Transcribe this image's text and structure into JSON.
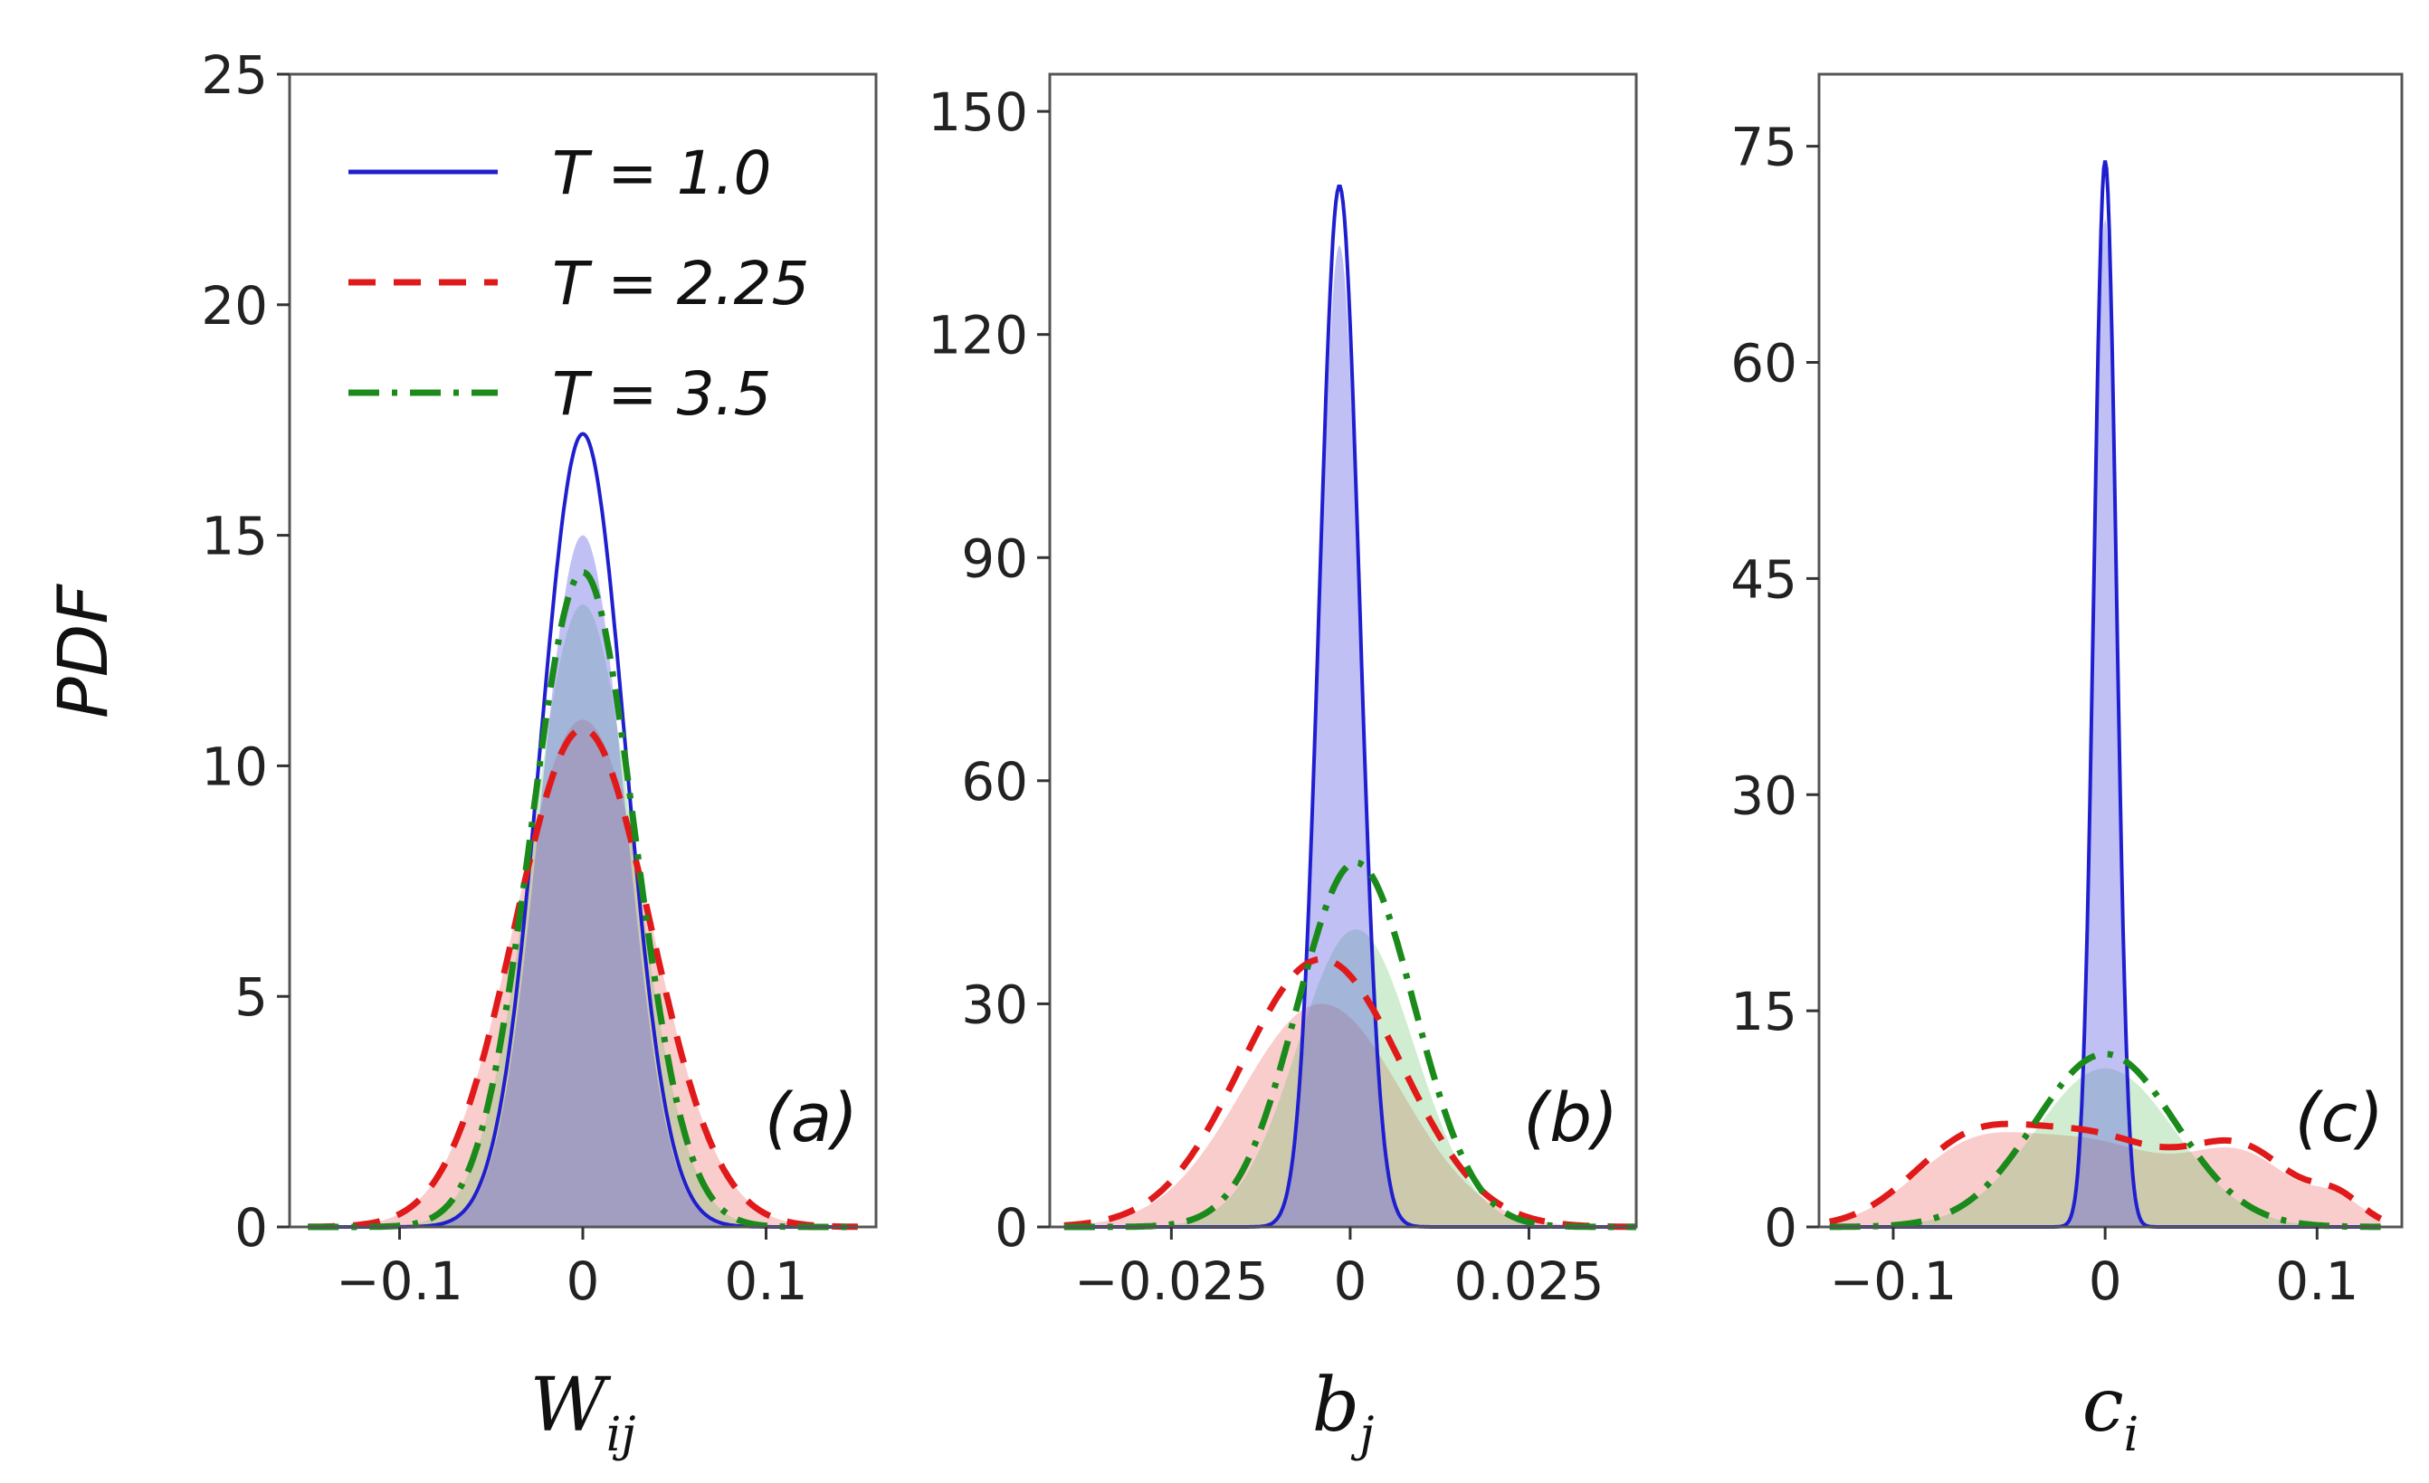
{
  "figure": {
    "ylabel": "PDF",
    "legend": {
      "entries": [
        {
          "label": "T = 1.0",
          "color": "#1f1fd0",
          "style": "solid"
        },
        {
          "label": "T = 2.25",
          "color": "#e01a1a",
          "style": "dashed"
        },
        {
          "label": "T = 3.5",
          "color": "#1a8a1a",
          "style": "dashdot"
        }
      ]
    }
  },
  "chart_data": [
    {
      "type": "area",
      "panel_label": "(a)",
      "xlabel": "W",
      "xlabel_sub": "ij",
      "xlim": [
        -0.16,
        0.16
      ],
      "ylim": [
        0,
        25
      ],
      "xticks": [
        -0.1,
        0,
        0.1
      ],
      "xtick_labels": [
        "−0.1",
        "0",
        "0.1"
      ],
      "yticks": [
        0,
        5,
        10,
        15,
        20,
        25
      ],
      "ytick_labels": [
        "0",
        "5",
        "10",
        "15",
        "20",
        "25"
      ],
      "xrange": [
        -0.15,
        0.15
      ],
      "series": [
        {
          "name": "T = 1.0",
          "peak": 17.2,
          "center": 0.0,
          "sigma": 0.0232,
          "fill_peak": 15.0
        },
        {
          "name": "T = 2.25",
          "peak": 10.8,
          "center": 0.0,
          "sigma": 0.037,
          "fill_peak": 11.0
        },
        {
          "name": "T = 3.5",
          "peak": 14.2,
          "center": 0.0,
          "sigma": 0.0282,
          "fill_peak": 13.5
        }
      ]
    },
    {
      "type": "area",
      "panel_label": "(b)",
      "xlabel": "b",
      "xlabel_sub": "j",
      "xlim": [
        -0.042,
        0.04
      ],
      "ylim": [
        0,
        155
      ],
      "xticks": [
        -0.025,
        0,
        0.025
      ],
      "xtick_labels": [
        "−0.025",
        "0",
        "0.025"
      ],
      "yticks": [
        0,
        30,
        60,
        90,
        120,
        150
      ],
      "ytick_labels": [
        "0",
        "30",
        "60",
        "90",
        "120",
        "150"
      ],
      "xrange": [
        -0.04,
        0.04
      ],
      "series": [
        {
          "name": "T = 1.0",
          "peak": 140,
          "center": -0.0015,
          "sigma": 0.0028,
          "fill_peak": 132
        },
        {
          "name": "T = 2.25",
          "peak": 36,
          "center": -0.004,
          "sigma": 0.0112,
          "fill_peak": 30
        },
        {
          "name": "T = 3.5",
          "peak": 49,
          "center": 0.0008,
          "sigma": 0.0082,
          "fill_peak": 40
        }
      ]
    },
    {
      "type": "area",
      "panel_label": "(c)",
      "xlabel": "c",
      "xlabel_sub": "i",
      "xlim": [
        -0.135,
        0.14
      ],
      "ylim": [
        0,
        80
      ],
      "xticks": [
        -0.1,
        0,
        0.1
      ],
      "xtick_labels": [
        "−0.1",
        "0",
        "0.1"
      ],
      "yticks": [
        0,
        15,
        30,
        45,
        60,
        75
      ],
      "ytick_labels": [
        "0",
        "15",
        "30",
        "45",
        "60",
        "75"
      ],
      "xrange": [
        -0.13,
        0.13
      ],
      "series": [
        {
          "name": "T = 1.0",
          "peak": 74,
          "center": 0.0,
          "sigma": 0.0053,
          "fill_peak": 70
        },
        {
          "name": "T = 2.25",
          "bimodal": [
            {
              "peak": 5.2,
              "center": -0.065,
              "sigma": 0.028
            },
            {
              "peak": 6.0,
              "center": -0.005,
              "sigma": 0.035
            },
            {
              "peak": 5.0,
              "center": 0.065,
              "sigma": 0.025
            },
            {
              "peak": 1.6,
              "center": 0.11,
              "sigma": 0.012
            }
          ]
        },
        {
          "name": "T = 3.5",
          "peak": 12,
          "center": 0.0,
          "sigma": 0.033,
          "fill_peak": 11
        }
      ]
    }
  ]
}
